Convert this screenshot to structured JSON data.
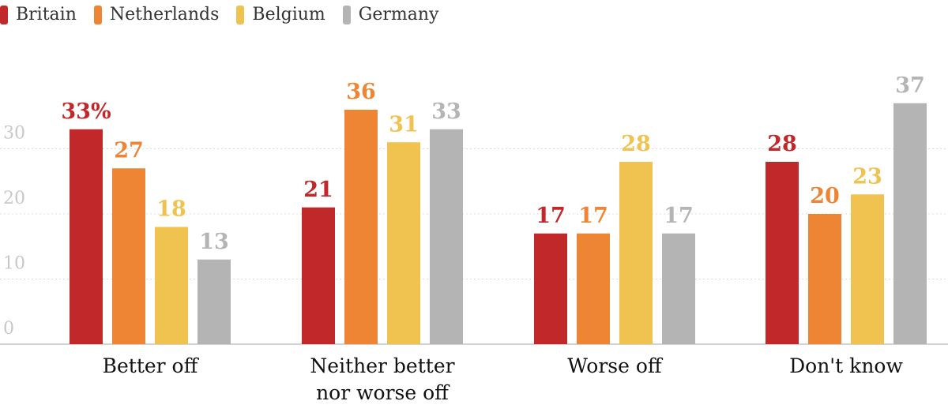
{
  "colors": {
    "Britain": "#c0282a",
    "Netherlands": "#ee8535",
    "Belgium": "#f0c24f",
    "Germany": "#b4b4b4",
    "grid": "#dcdcdc",
    "tick_label": "#c8c8c8",
    "category_label": "#111111"
  },
  "chart_data": {
    "type": "bar",
    "categories": [
      "Better off",
      "Neither better nor worse off",
      "Worse off",
      "Don't know"
    ],
    "series": [
      {
        "name": "Britain",
        "values": [
          33,
          21,
          17,
          28
        ]
      },
      {
        "name": "Netherlands",
        "values": [
          27,
          36,
          17,
          20
        ]
      },
      {
        "name": "Belgium",
        "values": [
          18,
          31,
          28,
          23
        ]
      },
      {
        "name": "Germany",
        "values": [
          13,
          33,
          17,
          37
        ]
      }
    ],
    "yticks": [
      0,
      10,
      20,
      30
    ],
    "ylim": [
      0,
      40
    ],
    "value_suffix_first": "%",
    "grid": true,
    "legend_position": "top-left",
    "title": "",
    "xlabel": "",
    "ylabel": ""
  }
}
